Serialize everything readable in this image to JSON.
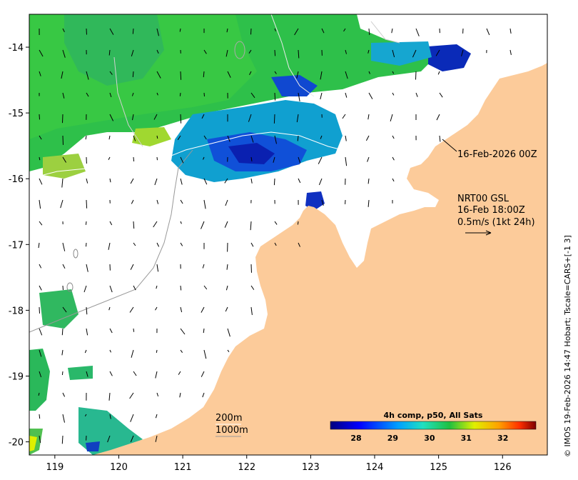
{
  "map": {
    "x_ticks": [
      "119",
      "120",
      "121",
      "122",
      "123",
      "124",
      "125",
      "126"
    ],
    "y_ticks": [
      "-14",
      "-15",
      "-16",
      "-17",
      "-18",
      "-19",
      "-20"
    ],
    "lon_range": [
      118.6,
      126.7
    ],
    "lat_range": [
      -20.2,
      -13.5
    ],
    "colors": {
      "land": "#fccb9a",
      "no_data": "#ffffff",
      "arrow": "#000000"
    }
  },
  "annotations": {
    "date_label": "16-Feb-2026 00Z",
    "product_line": "NRT00 GSL",
    "time_line": "16-Feb 18:00Z",
    "scale_line": "0.5m/s (1kt 24h)",
    "contour_200": "200m",
    "contour_1000": "1000m"
  },
  "colorbar": {
    "title": "4h comp, p50, All Sats",
    "ticks": [
      "28",
      "29",
      "30",
      "31",
      "32"
    ],
    "range": [
      27.3,
      32.9
    ],
    "units_scale": "°C"
  },
  "credit": "© IMOS 19-Feb-2026 14:47 Hobart; Tscale=CARS+[-1 3]"
}
